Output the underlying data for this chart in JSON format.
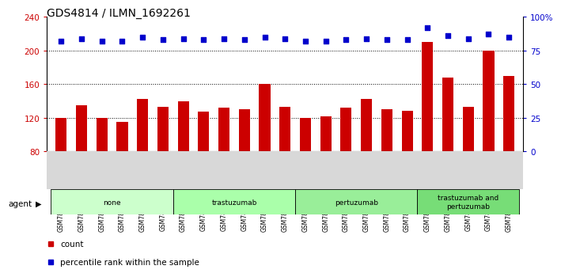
{
  "title": "GDS4814 / ILMN_1692261",
  "categories": [
    "GSM780707",
    "GSM780708",
    "GSM780709",
    "GSM780719",
    "GSM780720",
    "GSM780721",
    "GSM780710",
    "GSM780711",
    "GSM780712",
    "GSM780722",
    "GSM780723",
    "GSM780724",
    "GSM780713",
    "GSM780714",
    "GSM780715",
    "GSM780725",
    "GSM780726",
    "GSM780727",
    "GSM780716",
    "GSM780717",
    "GSM780718",
    "GSM780728",
    "GSM780729"
  ],
  "bar_values": [
    120,
    135,
    120,
    115,
    142,
    133,
    140,
    127,
    132,
    130,
    160,
    133,
    120,
    122,
    132,
    142,
    130,
    128,
    210,
    168,
    133,
    200,
    170
  ],
  "pct_values": [
    82,
    84,
    82,
    82,
    85,
    83,
    84,
    83,
    84,
    83,
    85,
    84,
    82,
    82,
    83,
    84,
    83,
    83,
    92,
    86,
    84,
    87,
    85
  ],
  "groups": [
    {
      "label": "none",
      "start": 0,
      "end": 6,
      "color": "#ccffcc"
    },
    {
      "label": "trastuzumab",
      "start": 6,
      "end": 12,
      "color": "#aaffaa"
    },
    {
      "label": "pertuzumab",
      "start": 12,
      "end": 18,
      "color": "#99ee99"
    },
    {
      "label": "trastuzumab and\npertuzumab",
      "start": 18,
      "end": 23,
      "color": "#77dd77"
    }
  ],
  "ylim_left": [
    80,
    240
  ],
  "ylim_right": [
    0,
    100
  ],
  "yticks_left": [
    80,
    120,
    160,
    200,
    240
  ],
  "yticks_right": [
    0,
    25,
    50,
    75,
    100
  ],
  "ytick_labels_right": [
    "0",
    "25",
    "50",
    "75",
    "100%"
  ],
  "bar_color": "#cc0000",
  "dot_color": "#0000cc",
  "bg_color": "#ffffff",
  "title_fontsize": 10,
  "axis_label_color_left": "#cc0000",
  "axis_label_color_right": "#0000cc"
}
